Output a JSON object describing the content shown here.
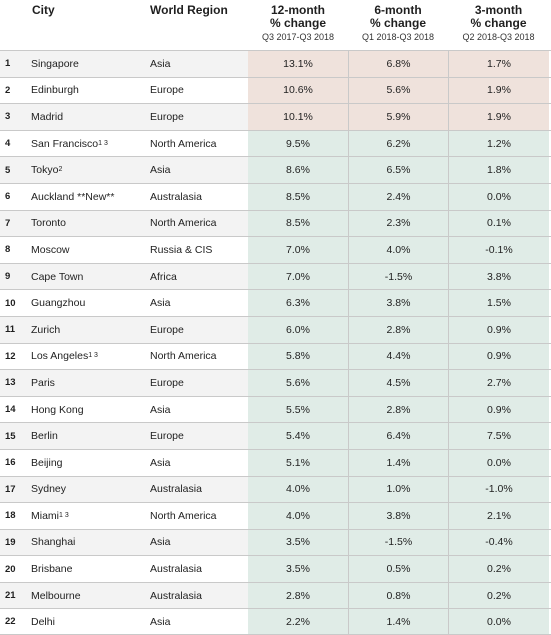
{
  "headers": {
    "city": "City",
    "region": "World Region",
    "col12": {
      "title_line1": "12-month",
      "title_line2": "% change",
      "period": "Q3 2017-Q3 2018"
    },
    "col6": {
      "title_line1": "6-month",
      "title_line2": "% change",
      "period": "Q1 2018-Q3 2018"
    },
    "col3": {
      "title_line1": "3-month",
      "title_line2": "% change",
      "period": "Q2 2018-Q3 2018"
    }
  },
  "colors": {
    "top3_fill": "#efe2dc",
    "rest_fill": "#e0ece7",
    "stripe": "#f3f3f3"
  },
  "rows": [
    {
      "rank": "1",
      "city": "Singapore",
      "sup": "",
      "region": "Asia",
      "m12": "13.1%",
      "m6": "6.8%",
      "m3": "1.7%"
    },
    {
      "rank": "2",
      "city": "Edinburgh",
      "sup": "",
      "region": "Europe",
      "m12": "10.6%",
      "m6": "5.6%",
      "m3": "1.9%"
    },
    {
      "rank": "3",
      "city": "Madrid",
      "sup": "",
      "region": "Europe",
      "m12": "10.1%",
      "m6": "5.9%",
      "m3": "1.9%"
    },
    {
      "rank": "4",
      "city": "San Francisco",
      "sup": "1 3",
      "region": "North America",
      "m12": "9.5%",
      "m6": "6.2%",
      "m3": "1.2%"
    },
    {
      "rank": "5",
      "city": "Tokyo",
      "sup": "2",
      "region": "Asia",
      "m12": "8.6%",
      "m6": "6.5%",
      "m3": "1.8%"
    },
    {
      "rank": "6",
      "city": "Auckland **New**",
      "sup": "",
      "region": "Australasia",
      "m12": "8.5%",
      "m6": "2.4%",
      "m3": "0.0%"
    },
    {
      "rank": "7",
      "city": "Toronto",
      "sup": "",
      "region": "North America",
      "m12": "8.5%",
      "m6": "2.3%",
      "m3": "0.1%"
    },
    {
      "rank": "8",
      "city": "Moscow",
      "sup": "",
      "region": "Russia & CIS",
      "m12": "7.0%",
      "m6": "4.0%",
      "m3": "-0.1%"
    },
    {
      "rank": "9",
      "city": "Cape Town",
      "sup": "",
      "region": "Africa",
      "m12": "7.0%",
      "m6": "-1.5%",
      "m3": "3.8%"
    },
    {
      "rank": "10",
      "city": "Guangzhou",
      "sup": "",
      "region": "Asia",
      "m12": "6.3%",
      "m6": "3.8%",
      "m3": "1.5%"
    },
    {
      "rank": "11",
      "city": "Zurich",
      "sup": "",
      "region": "Europe",
      "m12": "6.0%",
      "m6": "2.8%",
      "m3": "0.9%"
    },
    {
      "rank": "12",
      "city": "Los Angeles",
      "sup": "1 3",
      "region": "North America",
      "m12": "5.8%",
      "m6": "4.4%",
      "m3": "0.9%"
    },
    {
      "rank": "13",
      "city": "Paris",
      "sup": "",
      "region": "Europe",
      "m12": "5.6%",
      "m6": "4.5%",
      "m3": "2.7%"
    },
    {
      "rank": "14",
      "city": "Hong Kong",
      "sup": "",
      "region": "Asia",
      "m12": "5.5%",
      "m6": "2.8%",
      "m3": "0.9%"
    },
    {
      "rank": "15",
      "city": "Berlin",
      "sup": "",
      "region": "Europe",
      "m12": "5.4%",
      "m6": "6.4%",
      "m3": "7.5%"
    },
    {
      "rank": "16",
      "city": "Beijing",
      "sup": "",
      "region": "Asia",
      "m12": "5.1%",
      "m6": "1.4%",
      "m3": "0.0%"
    },
    {
      "rank": "17",
      "city": "Sydney",
      "sup": "",
      "region": "Australasia",
      "m12": "4.0%",
      "m6": "1.0%",
      "m3": "-1.0%"
    },
    {
      "rank": "18",
      "city": "Miami",
      "sup": "1 3",
      "region": "North America",
      "m12": "4.0%",
      "m6": "3.8%",
      "m3": "2.1%"
    },
    {
      "rank": "19",
      "city": "Shanghai",
      "sup": "",
      "region": "Asia",
      "m12": "3.5%",
      "m6": "-1.5%",
      "m3": "-0.4%"
    },
    {
      "rank": "20",
      "city": "Brisbane",
      "sup": "",
      "region": "Australasia",
      "m12": "3.5%",
      "m6": "0.5%",
      "m3": "0.2%"
    },
    {
      "rank": "21",
      "city": "Melbourne",
      "sup": "",
      "region": "Australasia",
      "m12": "2.8%",
      "m6": "0.8%",
      "m3": "0.2%"
    },
    {
      "rank": "22",
      "city": "Delhi",
      "sup": "",
      "region": "Asia",
      "m12": "2.2%",
      "m6": "1.4%",
      "m3": "0.0%"
    }
  ]
}
